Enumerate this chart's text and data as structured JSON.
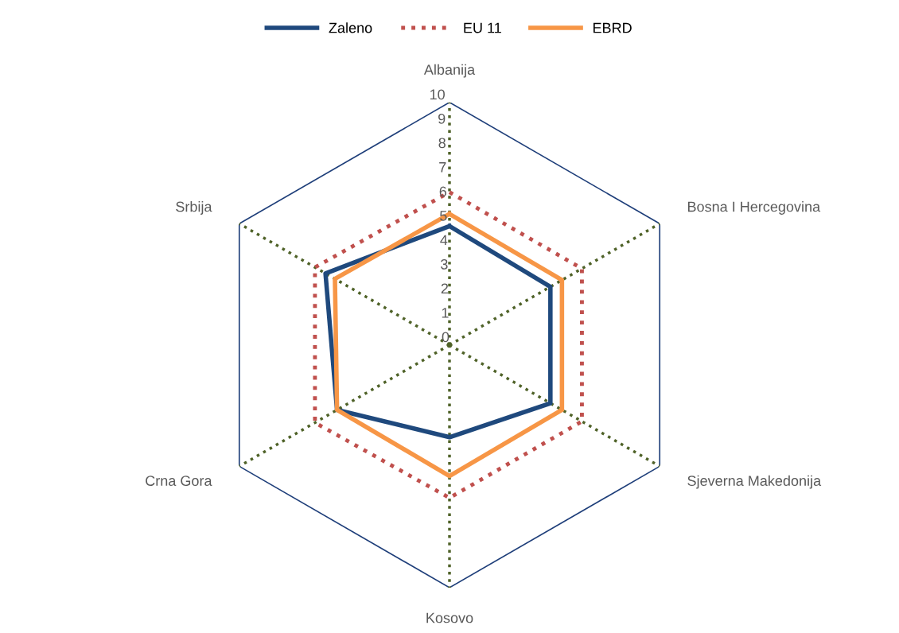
{
  "chart_data": {
    "type": "radar",
    "categories": [
      "Albanija",
      "Bosna I Hercegovina",
      "Sjeverna Makedonija",
      "Kosovo",
      "Crna Gora",
      "Srbija"
    ],
    "series": [
      {
        "name": "Zaleno",
        "color": "#1f497d",
        "line_style": "solid",
        "values": [
          4.9,
          4.8,
          4.8,
          3.8,
          5.35,
          5.9
        ]
      },
      {
        "name": "EU 11",
        "color": "#c0504d",
        "line_style": "dotted",
        "values": [
          6.3,
          6.3,
          6.3,
          6.3,
          6.4,
          6.4
        ]
      },
      {
        "name": "EBRD",
        "color": "#f79646",
        "line_style": "solid",
        "values": [
          5.4,
          5.35,
          5.35,
          5.4,
          5.35,
          5.45
        ]
      }
    ],
    "ylim": [
      0,
      10
    ],
    "yticks": [
      0,
      1,
      2,
      3,
      4,
      5,
      6,
      7,
      8,
      9,
      10
    ],
    "grid": true,
    "legend": "top",
    "marker": "none"
  }
}
